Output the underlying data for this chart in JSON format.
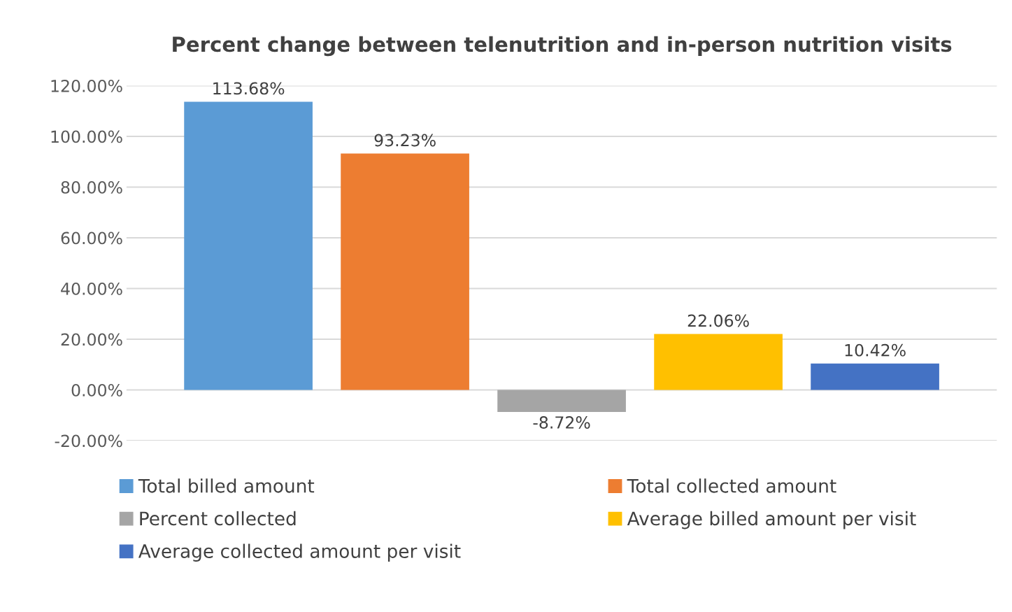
{
  "chart_data": {
    "type": "bar",
    "title": "Percent change between telenutrition and in-person nutrition visits",
    "categories": [
      null
    ],
    "series": [
      {
        "name": "Total billed amount",
        "color": "#5b9bd5",
        "values": [
          113.68
        ],
        "value_labels": [
          "113.68%"
        ]
      },
      {
        "name": "Total collected amount",
        "color": "#ed7d31",
        "values": [
          93.23
        ],
        "value_labels": [
          "93.23%"
        ]
      },
      {
        "name": "Percent collected",
        "color": "#a5a5a5",
        "values": [
          -8.72
        ],
        "value_labels": [
          "-8.72%"
        ]
      },
      {
        "name": "Average billed amount per visit",
        "color": "#ffc000",
        "values": [
          22.06
        ],
        "value_labels": [
          "22.06%"
        ]
      },
      {
        "name": "Average collected amount per visit",
        "color": "#4472c4",
        "values": [
          10.42
        ],
        "value_labels": [
          "10.42%"
        ]
      }
    ],
    "ylim": [
      -20,
      120
    ],
    "yticks": [
      {
        "value": -20,
        "label": "-20.00%"
      },
      {
        "value": 0,
        "label": "0.00%"
      },
      {
        "value": 20,
        "label": "20.00%"
      },
      {
        "value": 40,
        "label": "40.00%"
      },
      {
        "value": 60,
        "label": "60.00%"
      },
      {
        "value": 80,
        "label": "80.00%"
      },
      {
        "value": 100,
        "label": "100.00%"
      },
      {
        "value": 120,
        "label": "120.00%"
      }
    ],
    "grid": "y",
    "legend": "bottom",
    "tick_labels": "y"
  }
}
